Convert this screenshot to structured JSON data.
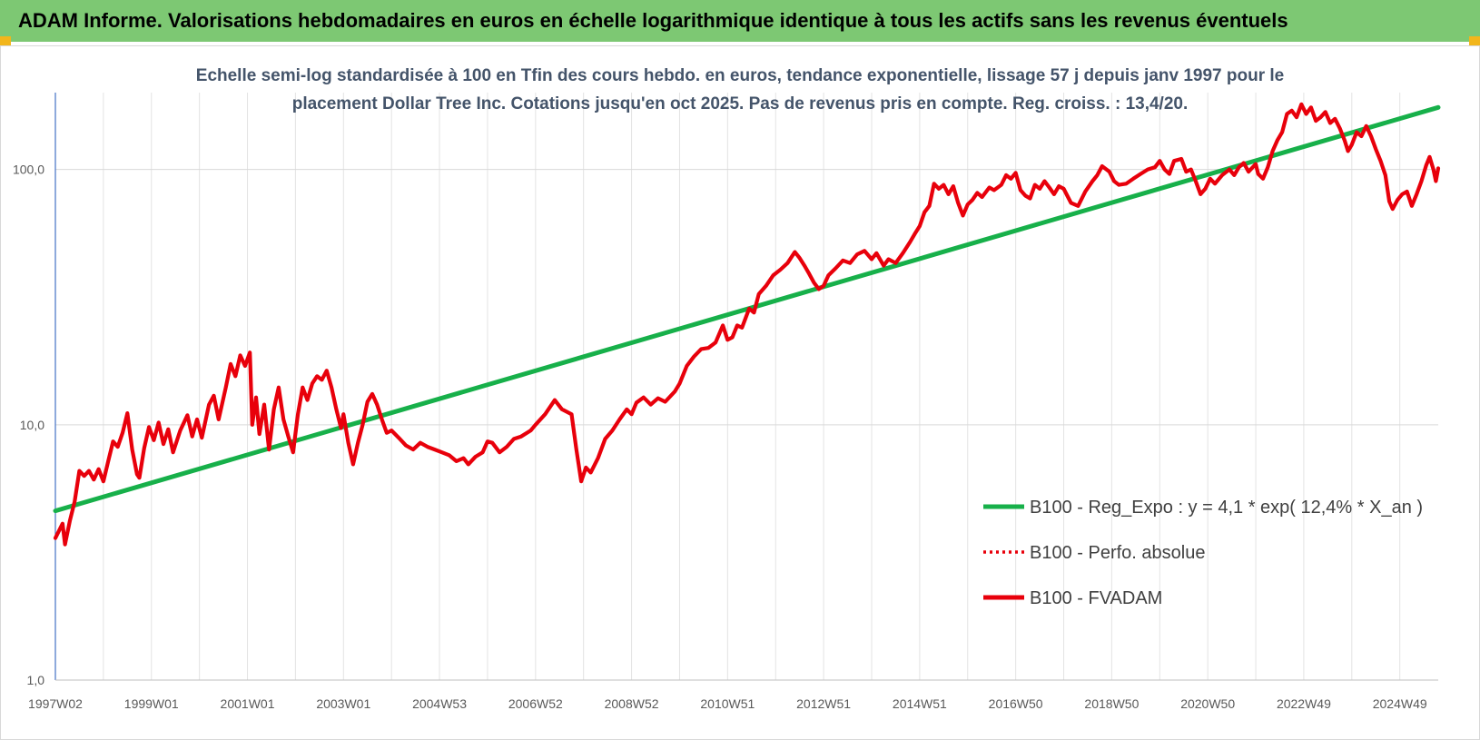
{
  "header": {
    "title": "ADAM Informe. Valorisations hebdomadaires en euros en échelle logarithmique identique à tous les actifs sans les revenus éventuels"
  },
  "chart_data": {
    "type": "line",
    "title_line1": "Echelle semi-log standardisée à 100 en Tfin des cours hebdo. en euros, tendance exponentielle, lissage 57 j depuis janv 1997 pour le",
    "title_line2": "placement Dollar Tree Inc.  Cotations jusqu'en oct 2025.  Pas de revenus pris en compte. Reg. croiss. : 13,4/20.",
    "y_scale": "log",
    "ylim": [
      1,
      200
    ],
    "y_ticks": [
      {
        "value": 1,
        "label": "1,0"
      },
      {
        "value": 10,
        "label": "10,0"
      },
      {
        "value": 100,
        "label": "100,0"
      }
    ],
    "x_range": [
      1997.0,
      2025.8
    ],
    "x_ticks": [
      {
        "value": 1997.0,
        "label": "1997W02"
      },
      {
        "value": 1999.0,
        "label": "1999W01"
      },
      {
        "value": 2001.0,
        "label": "2001W01"
      },
      {
        "value": 2003.0,
        "label": "2003W01"
      },
      {
        "value": 2005.0,
        "label": "2004W53"
      },
      {
        "value": 2007.0,
        "label": "2006W52"
      },
      {
        "value": 2009.0,
        "label": "2008W52"
      },
      {
        "value": 2011.0,
        "label": "2010W51"
      },
      {
        "value": 2013.0,
        "label": "2012W51"
      },
      {
        "value": 2015.0,
        "label": "2014W51"
      },
      {
        "value": 2017.0,
        "label": "2016W50"
      },
      {
        "value": 2019.0,
        "label": "2018W50"
      },
      {
        "value": 2021.0,
        "label": "2020W50"
      },
      {
        "value": 2023.0,
        "label": "2022W49"
      },
      {
        "value": 2025.0,
        "label": "2024W49"
      }
    ],
    "grid": "vertical and horizontal",
    "legend_position": "bottom-right",
    "series": [
      {
        "name": "B100 - Reg_Expo : y = 4,1 * exp( 12,4% *  X_an )",
        "color": "#17b04a",
        "style": "solid",
        "points": [
          [
            1997.0,
            4.6
          ],
          [
            2025.8,
            175
          ]
        ]
      },
      {
        "name": "B100 - Perfo. absolue",
        "color": "#e8000b",
        "style": "dotted",
        "points": []
      },
      {
        "name": "B100 - FVADAM",
        "color": "#e8000b",
        "style": "solid",
        "points": [
          [
            1997.0,
            3.6
          ],
          [
            1997.15,
            4.1
          ],
          [
            1997.2,
            3.4
          ],
          [
            1997.3,
            4.2
          ],
          [
            1997.4,
            5.0
          ],
          [
            1997.5,
            6.6
          ],
          [
            1997.6,
            6.3
          ],
          [
            1997.7,
            6.6
          ],
          [
            1997.8,
            6.1
          ],
          [
            1997.9,
            6.7
          ],
          [
            1998.0,
            6.0
          ],
          [
            1998.1,
            7.2
          ],
          [
            1998.2,
            8.6
          ],
          [
            1998.3,
            8.2
          ],
          [
            1998.4,
            9.3
          ],
          [
            1998.5,
            11.1
          ],
          [
            1998.6,
            8.0
          ],
          [
            1998.7,
            6.4
          ],
          [
            1998.75,
            6.2
          ],
          [
            1998.85,
            8.1
          ],
          [
            1998.95,
            9.8
          ],
          [
            1999.05,
            8.7
          ],
          [
            1999.15,
            10.2
          ],
          [
            1999.25,
            8.4
          ],
          [
            1999.35,
            9.6
          ],
          [
            1999.45,
            7.8
          ],
          [
            1999.6,
            9.5
          ],
          [
            1999.75,
            10.9
          ],
          [
            1999.85,
            9.0
          ],
          [
            1999.95,
            10.5
          ],
          [
            2000.05,
            8.9
          ],
          [
            2000.2,
            12.0
          ],
          [
            2000.3,
            13.0
          ],
          [
            2000.4,
            10.5
          ],
          [
            2000.55,
            14.0
          ],
          [
            2000.65,
            17.3
          ],
          [
            2000.75,
            15.5
          ],
          [
            2000.85,
            18.7
          ],
          [
            2000.95,
            17.0
          ],
          [
            2001.05,
            19.2
          ],
          [
            2001.1,
            10.0
          ],
          [
            2001.18,
            12.8
          ],
          [
            2001.25,
            9.2
          ],
          [
            2001.35,
            12.0
          ],
          [
            2001.45,
            8.0
          ],
          [
            2001.55,
            11.5
          ],
          [
            2001.65,
            14.0
          ],
          [
            2001.75,
            10.5
          ],
          [
            2001.85,
            9.0
          ],
          [
            2001.95,
            7.8
          ],
          [
            2002.05,
            11.0
          ],
          [
            2002.15,
            14.0
          ],
          [
            2002.25,
            12.5
          ],
          [
            2002.35,
            14.5
          ],
          [
            2002.45,
            15.5
          ],
          [
            2002.55,
            15.0
          ],
          [
            2002.65,
            16.3
          ],
          [
            2002.75,
            14.0
          ],
          [
            2002.85,
            11.5
          ],
          [
            2002.95,
            9.7
          ],
          [
            2003.0,
            11.0
          ],
          [
            2003.1,
            8.5
          ],
          [
            2003.2,
            7.0
          ],
          [
            2003.3,
            8.5
          ],
          [
            2003.4,
            10.0
          ],
          [
            2003.5,
            12.3
          ],
          [
            2003.6,
            13.2
          ],
          [
            2003.7,
            12.0
          ],
          [
            2003.8,
            10.5
          ],
          [
            2003.9,
            9.3
          ],
          [
            2004.0,
            9.5
          ],
          [
            2004.15,
            8.9
          ],
          [
            2004.3,
            8.3
          ],
          [
            2004.45,
            8.0
          ],
          [
            2004.6,
            8.5
          ],
          [
            2004.75,
            8.2
          ],
          [
            2004.9,
            8.0
          ],
          [
            2005.05,
            7.8
          ],
          [
            2005.2,
            7.6
          ],
          [
            2005.35,
            7.2
          ],
          [
            2005.5,
            7.4
          ],
          [
            2005.6,
            7.0
          ],
          [
            2005.75,
            7.5
          ],
          [
            2005.9,
            7.8
          ],
          [
            2006.0,
            8.6
          ],
          [
            2006.1,
            8.5
          ],
          [
            2006.25,
            7.8
          ],
          [
            2006.4,
            8.2
          ],
          [
            2006.55,
            8.8
          ],
          [
            2006.7,
            9.0
          ],
          [
            2006.9,
            9.5
          ],
          [
            2007.0,
            10.0
          ],
          [
            2007.2,
            11.0
          ],
          [
            2007.4,
            12.5
          ],
          [
            2007.55,
            11.5
          ],
          [
            2007.75,
            11.0
          ],
          [
            2007.85,
            8.0
          ],
          [
            2007.95,
            6.0
          ],
          [
            2008.05,
            6.8
          ],
          [
            2008.15,
            6.5
          ],
          [
            2008.3,
            7.4
          ],
          [
            2008.45,
            8.8
          ],
          [
            2008.6,
            9.5
          ],
          [
            2008.75,
            10.5
          ],
          [
            2008.9,
            11.5
          ],
          [
            2009.0,
            11.0
          ],
          [
            2009.1,
            12.2
          ],
          [
            2009.25,
            12.8
          ],
          [
            2009.4,
            12.0
          ],
          [
            2009.55,
            12.7
          ],
          [
            2009.7,
            12.3
          ],
          [
            2009.9,
            13.5
          ],
          [
            2010.0,
            14.5
          ],
          [
            2010.15,
            17.0
          ],
          [
            2010.3,
            18.5
          ],
          [
            2010.45,
            19.8
          ],
          [
            2010.6,
            20.0
          ],
          [
            2010.75,
            21.0
          ],
          [
            2010.9,
            24.5
          ],
          [
            2011.0,
            21.5
          ],
          [
            2011.1,
            22.0
          ],
          [
            2011.2,
            24.5
          ],
          [
            2011.3,
            24.0
          ],
          [
            2011.45,
            28.5
          ],
          [
            2011.55,
            27.5
          ],
          [
            2011.65,
            32.5
          ],
          [
            2011.8,
            35.0
          ],
          [
            2011.95,
            38.5
          ],
          [
            2012.1,
            40.5
          ],
          [
            2012.25,
            43.0
          ],
          [
            2012.4,
            47.5
          ],
          [
            2012.5,
            45.0
          ],
          [
            2012.6,
            42.0
          ],
          [
            2012.7,
            39.0
          ],
          [
            2012.8,
            36.0
          ],
          [
            2012.9,
            34.0
          ],
          [
            2013.0,
            35.0
          ],
          [
            2013.1,
            38.5
          ],
          [
            2013.25,
            41.0
          ],
          [
            2013.4,
            44.0
          ],
          [
            2013.55,
            43.0
          ],
          [
            2013.7,
            46.5
          ],
          [
            2013.85,
            48.0
          ],
          [
            2014.0,
            44.5
          ],
          [
            2014.1,
            47.0
          ],
          [
            2014.25,
            42.0
          ],
          [
            2014.35,
            44.5
          ],
          [
            2014.5,
            43.0
          ],
          [
            2014.65,
            47.0
          ],
          [
            2014.8,
            52.0
          ],
          [
            2014.9,
            56.0
          ],
          [
            2015.0,
            60.0
          ],
          [
            2015.1,
            68.0
          ],
          [
            2015.2,
            72.0
          ],
          [
            2015.3,
            88.0
          ],
          [
            2015.4,
            84.0
          ],
          [
            2015.5,
            87.0
          ],
          [
            2015.6,
            80.0
          ],
          [
            2015.7,
            86.0
          ],
          [
            2015.8,
            74.0
          ],
          [
            2015.9,
            66.0
          ],
          [
            2016.0,
            73.0
          ],
          [
            2016.1,
            76.0
          ],
          [
            2016.2,
            81.0
          ],
          [
            2016.3,
            78.0
          ],
          [
            2016.45,
            85.0
          ],
          [
            2016.55,
            83.0
          ],
          [
            2016.7,
            87.0
          ],
          [
            2016.8,
            95.0
          ],
          [
            2016.9,
            92.0
          ],
          [
            2017.0,
            97.0
          ],
          [
            2017.1,
            83.0
          ],
          [
            2017.2,
            79.0
          ],
          [
            2017.3,
            77.0
          ],
          [
            2017.4,
            87.0
          ],
          [
            2017.5,
            84.0
          ],
          [
            2017.6,
            90.0
          ],
          [
            2017.7,
            85.0
          ],
          [
            2017.8,
            80.0
          ],
          [
            2017.9,
            86.0
          ],
          [
            2018.0,
            84.0
          ],
          [
            2018.15,
            74.0
          ],
          [
            2018.3,
            72.0
          ],
          [
            2018.45,
            82.0
          ],
          [
            2018.6,
            90.0
          ],
          [
            2018.7,
            95.0
          ],
          [
            2018.8,
            103.0
          ],
          [
            2018.95,
            98.0
          ],
          [
            2019.05,
            90.0
          ],
          [
            2019.15,
            87.0
          ],
          [
            2019.3,
            88.0
          ],
          [
            2019.45,
            92.0
          ],
          [
            2019.6,
            96.0
          ],
          [
            2019.75,
            100.0
          ],
          [
            2019.9,
            102.0
          ],
          [
            2020.0,
            108.0
          ],
          [
            2020.1,
            100.0
          ],
          [
            2020.2,
            96.0
          ],
          [
            2020.3,
            108.0
          ],
          [
            2020.45,
            110.0
          ],
          [
            2020.55,
            98.0
          ],
          [
            2020.65,
            100.0
          ],
          [
            2020.75,
            90.0
          ],
          [
            2020.85,
            80.0
          ],
          [
            2020.95,
            84.0
          ],
          [
            2021.05,
            92.0
          ],
          [
            2021.15,
            88.0
          ],
          [
            2021.3,
            95.0
          ],
          [
            2021.45,
            100.0
          ],
          [
            2021.55,
            95.0
          ],
          [
            2021.65,
            102.0
          ],
          [
            2021.75,
            106.0
          ],
          [
            2021.85,
            98.0
          ],
          [
            2022.0,
            105.0
          ],
          [
            2022.05,
            96.0
          ],
          [
            2022.15,
            92.0
          ],
          [
            2022.25,
            102.0
          ],
          [
            2022.35,
            118.0
          ],
          [
            2022.45,
            130.0
          ],
          [
            2022.55,
            140.0
          ],
          [
            2022.65,
            165.0
          ],
          [
            2022.75,
            170.0
          ],
          [
            2022.85,
            160.0
          ],
          [
            2022.95,
            180.0
          ],
          [
            2023.05,
            165.0
          ],
          [
            2023.15,
            175.0
          ],
          [
            2023.25,
            155.0
          ],
          [
            2023.35,
            160.0
          ],
          [
            2023.45,
            168.0
          ],
          [
            2023.55,
            152.0
          ],
          [
            2023.65,
            158.0
          ],
          [
            2023.75,
            145.0
          ],
          [
            2023.85,
            130.0
          ],
          [
            2023.92,
            118.0
          ],
          [
            2024.0,
            125.0
          ],
          [
            2024.1,
            140.0
          ],
          [
            2024.2,
            135.0
          ],
          [
            2024.3,
            148.0
          ],
          [
            2024.4,
            135.0
          ],
          [
            2024.5,
            120.0
          ],
          [
            2024.6,
            108.0
          ],
          [
            2024.7,
            95.0
          ],
          [
            2024.78,
            75.0
          ],
          [
            2024.85,
            70.0
          ],
          [
            2024.95,
            76.0
          ],
          [
            2025.05,
            80.0
          ],
          [
            2025.15,
            82.0
          ],
          [
            2025.25,
            72.0
          ],
          [
            2025.35,
            80.0
          ],
          [
            2025.45,
            90.0
          ],
          [
            2025.55,
            104.0
          ],
          [
            2025.62,
            112.0
          ],
          [
            2025.7,
            100.0
          ],
          [
            2025.75,
            90.0
          ],
          [
            2025.8,
            101.0
          ]
        ]
      }
    ]
  }
}
